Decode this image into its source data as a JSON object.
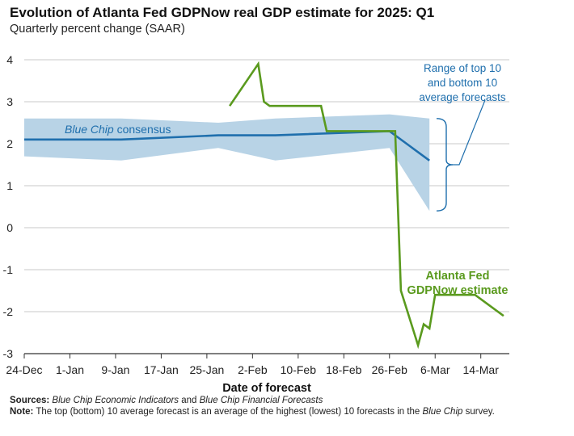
{
  "title": "Evolution of Atlanta Fed GDPNow real GDP estimate for 2025: Q1",
  "subtitle": "Quarterly percent change (SAAR)",
  "colors": {
    "band": "#b8d3e6",
    "consensus": "#1f6fad",
    "gdpnow": "#5a9a1e",
    "annotation": "#1f6fad",
    "grid": "#c8c8c8",
    "axis": "#333333"
  },
  "chart_data": {
    "type": "line",
    "title": "Evolution of Atlanta Fed GDPNow real GDP estimate for 2025: Q1",
    "xlabel": "Date of forecast",
    "ylabel": "Quarterly percent change (SAAR)",
    "xlim": [
      "2024-12-24",
      "2025-03-19"
    ],
    "ylim": [
      -3,
      4
    ],
    "y_ticks": [
      4,
      3,
      2,
      1,
      0,
      -1,
      -2,
      -3
    ],
    "x_ticks": [
      {
        "date": "2024-12-24",
        "label": "24-Dec"
      },
      {
        "date": "2025-01-01",
        "label": "1-Jan"
      },
      {
        "date": "2025-01-09",
        "label": "9-Jan"
      },
      {
        "date": "2025-01-17",
        "label": "17-Jan"
      },
      {
        "date": "2025-01-25",
        "label": "25-Jan"
      },
      {
        "date": "2025-02-02",
        "label": "2-Feb"
      },
      {
        "date": "2025-02-10",
        "label": "10-Feb"
      },
      {
        "date": "2025-02-18",
        "label": "18-Feb"
      },
      {
        "date": "2025-02-26",
        "label": "26-Feb"
      },
      {
        "date": "2025-03-06",
        "label": "6-Mar"
      },
      {
        "date": "2025-03-14",
        "label": "14-Mar"
      }
    ],
    "grid": true,
    "series": [
      {
        "name": "Blue Chip consensus",
        "kind": "line",
        "x": [
          "2024-12-24",
          "2025-01-01",
          "2025-01-10",
          "2025-01-27",
          "2025-02-06",
          "2025-02-26",
          "2025-03-05"
        ],
        "y": [
          2.1,
          2.1,
          2.1,
          2.2,
          2.2,
          2.3,
          1.6
        ]
      },
      {
        "name": "Range of top 10 and bottom 10 average forecasts",
        "kind": "band",
        "x": [
          "2024-12-24",
          "2025-01-10",
          "2025-01-27",
          "2025-02-06",
          "2025-02-26",
          "2025-03-05"
        ],
        "upper": [
          2.6,
          2.6,
          2.5,
          2.6,
          2.7,
          2.6
        ],
        "lower": [
          1.7,
          1.6,
          1.9,
          1.6,
          1.9,
          0.4
        ]
      },
      {
        "name": "Atlanta Fed GDPNow estimate",
        "kind": "line",
        "x": [
          "2025-01-29",
          "2025-02-03",
          "2025-02-04",
          "2025-02-05",
          "2025-02-14",
          "2025-02-15",
          "2025-02-27",
          "2025-02-28",
          "2025-03-03",
          "2025-03-04",
          "2025-03-05",
          "2025-03-06",
          "2025-03-07",
          "2025-03-13",
          "2025-03-18"
        ],
        "y": [
          2.9,
          3.9,
          3.0,
          2.9,
          2.9,
          2.3,
          2.3,
          -1.5,
          -2.8,
          -2.3,
          -2.4,
          -1.6,
          -1.6,
          -1.6,
          -2.1
        ]
      }
    ],
    "annotations": [
      {
        "text": "Blue Chip consensus",
        "italic_part": "Blue Chip"
      },
      {
        "text": "Range of top 10 and bottom 10 average forecasts",
        "lines": [
          "Range of top 10",
          "and bottom 10",
          "average forecasts"
        ]
      },
      {
        "text": "Atlanta Fed GDPNow estimate",
        "lines": [
          "Atlanta Fed",
          "GDPNow estimate"
        ]
      }
    ]
  },
  "footer": {
    "sources_label": "Sources:",
    "sources_italic_1": "Blue Chip Economic Indicators",
    "sources_and": " and ",
    "sources_italic_2": "Blue Chip Financial Forecasts",
    "note_label": "Note:",
    "note_text_1": " The top (bottom) 10 average forecast is an average of the highest (lowest) 10 forecasts in the ",
    "note_italic": "Blue Chip",
    "note_text_2": " survey."
  }
}
